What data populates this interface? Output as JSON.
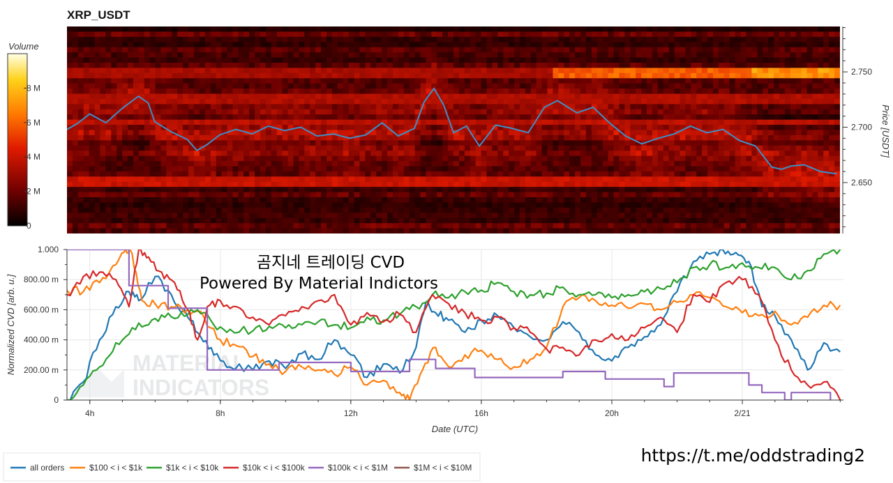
{
  "title": "XRP_USDT",
  "overlay_lines": [
    "곰지네 트레이딩 CVD",
    "Powered By Material Indictors"
  ],
  "watermark_lines": [
    "MATERIAL",
    "INDICATORS"
  ],
  "url_text": "https://t.me/oddstrading2",
  "colors": {
    "all_orders": "#1f77b4",
    "s100_1k": "#ff7f0e",
    "s1k_10k": "#2ca02c",
    "s10k_100k": "#d62728",
    "s100k_1m": "#9467bd",
    "s1m_10m": "#8c564b",
    "price_line": "#3d8fc9"
  },
  "chart_data": [
    {
      "type": "heatmap",
      "title": "XRP_USDT",
      "colorbar": {
        "label": "Volume",
        "ticks": [
          "0",
          "2 M",
          "4 M",
          "6 M",
          "8 M"
        ],
        "range": [
          0,
          10000000
        ]
      },
      "y_axis": {
        "label": "Price [USDT]",
        "ticks": [
          "2.650",
          "2.700",
          "2.750"
        ],
        "range": [
          2.604,
          2.791
        ]
      },
      "bright_levels": [
        {
          "price": 2.75,
          "level": 0.62
        },
        {
          "price": 2.705,
          "level": 0.38
        },
        {
          "price": 2.725,
          "level": 0.36
        },
        {
          "price": 2.65,
          "level": 0.42
        }
      ],
      "price_series": {
        "x": [
          3.3,
          3.6,
          4.0,
          4.5,
          5.0,
          5.5,
          5.8,
          6.0,
          6.5,
          7.0,
          7.3,
          7.6,
          8.0,
          8.5,
          9.0,
          9.5,
          10.0,
          10.5,
          11.0,
          11.5,
          12.0,
          12.5,
          13.0,
          13.5,
          14.0,
          14.3,
          14.6,
          14.9,
          15.2,
          15.6,
          16.0,
          16.5,
          17.0,
          17.5,
          18.0,
          18.4,
          19.0,
          19.5,
          20.0,
          20.5,
          21.0,
          21.5,
          22.0,
          22.5,
          23.0,
          23.5,
          24.0,
          24.5,
          25.0,
          25.3,
          25.6,
          26.0,
          26.5,
          27.0
        ],
        "y": [
          2.698,
          2.703,
          2.712,
          2.704,
          2.717,
          2.728,
          2.722,
          2.705,
          2.696,
          2.689,
          2.679,
          2.684,
          2.693,
          2.698,
          2.694,
          2.701,
          2.697,
          2.7,
          2.692,
          2.694,
          2.69,
          2.693,
          2.704,
          2.692,
          2.699,
          2.723,
          2.735,
          2.72,
          2.695,
          2.701,
          2.683,
          2.702,
          2.699,
          2.695,
          2.718,
          2.724,
          2.713,
          2.718,
          2.704,
          2.692,
          2.685,
          2.69,
          2.694,
          2.701,
          2.695,
          2.698,
          2.688,
          2.683,
          2.664,
          2.662,
          2.665,
          2.666,
          2.66,
          2.658
        ]
      }
    },
    {
      "type": "line",
      "xlabel": "Date (UTC)",
      "ylabel": "Normalized CVD [arb. u.]",
      "x_ticks": [
        "4h",
        "8h",
        "12h",
        "16h",
        "20h",
        "2/21"
      ],
      "x_tick_hours": [
        4,
        8,
        12,
        16,
        20,
        24
      ],
      "xlim": [
        3.3,
        27.1
      ],
      "y_ticks": [
        "0",
        "200.00 m",
        "400.00 m",
        "600.00 m",
        "800.00 m",
        "1.000"
      ],
      "ylim": [
        0,
        1
      ],
      "grid": true,
      "legend_position": "bottom",
      "series": [
        {
          "name": "all orders",
          "color_key": "all_orders",
          "x": [
            3.3,
            3.8,
            4.3,
            4.8,
            5.2,
            5.5,
            6.0,
            6.5,
            7.0,
            7.4,
            7.8,
            8.3,
            9.0,
            9.5,
            10.0,
            10.5,
            11.0,
            11.5,
            12.0,
            12.5,
            13.0,
            13.5,
            14.0,
            14.3,
            14.6,
            15.0,
            15.5,
            16.0,
            16.5,
            17.0,
            17.5,
            18.0,
            18.5,
            19.0,
            19.5,
            20.0,
            20.5,
            21.0,
            21.5,
            22.0,
            22.5,
            23.0,
            23.4,
            23.8,
            24.2,
            24.6,
            25.0,
            25.5,
            26.0,
            26.5,
            27.0
          ],
          "y": [
            0.0,
            0.12,
            0.4,
            0.62,
            0.72,
            0.66,
            0.82,
            0.7,
            0.55,
            0.42,
            0.3,
            0.22,
            0.2,
            0.26,
            0.21,
            0.31,
            0.27,
            0.4,
            0.3,
            0.15,
            0.24,
            0.18,
            0.35,
            0.65,
            0.58,
            0.53,
            0.45,
            0.53,
            0.56,
            0.48,
            0.42,
            0.4,
            0.52,
            0.45,
            0.3,
            0.26,
            0.35,
            0.42,
            0.5,
            0.72,
            0.92,
            0.97,
            1.0,
            0.98,
            0.92,
            0.62,
            0.56,
            0.4,
            0.2,
            0.38,
            0.32
          ]
        },
        {
          "name": "$100 < i < $1k",
          "color_key": "s100_1k",
          "x": [
            3.3,
            3.8,
            4.3,
            4.8,
            5.1,
            5.3,
            5.6,
            6.0,
            6.5,
            7.0,
            7.5,
            8.0,
            8.5,
            9.0,
            9.5,
            10.0,
            10.5,
            11.0,
            11.5,
            12.0,
            12.5,
            13.0,
            13.5,
            13.8,
            14.2,
            14.6,
            15.0,
            15.5,
            16.0,
            16.5,
            17.0,
            17.5,
            18.0,
            18.5,
            19.0,
            19.5,
            20.0,
            20.5,
            21.0,
            21.5,
            22.0,
            22.5,
            23.0,
            23.5,
            24.0,
            24.5,
            25.0,
            25.5,
            26.0,
            26.5,
            27.0
          ],
          "y": [
            0.73,
            0.72,
            0.78,
            0.9,
            1.0,
            0.97,
            0.66,
            0.64,
            0.62,
            0.6,
            0.55,
            0.4,
            0.36,
            0.29,
            0.24,
            0.19,
            0.22,
            0.2,
            0.17,
            0.22,
            0.1,
            0.13,
            0.05,
            0.0,
            0.2,
            0.35,
            0.22,
            0.3,
            0.33,
            0.27,
            0.22,
            0.27,
            0.35,
            0.62,
            0.68,
            0.66,
            0.63,
            0.61,
            0.64,
            0.6,
            0.65,
            0.7,
            0.68,
            0.62,
            0.58,
            0.56,
            0.59,
            0.5,
            0.55,
            0.63,
            0.63
          ]
        },
        {
          "name": "$1k < i < $10k",
          "color_key": "s1k_10k",
          "x": [
            3.3,
            3.8,
            4.3,
            4.8,
            5.3,
            5.8,
            6.3,
            6.8,
            7.3,
            7.8,
            8.3,
            9.0,
            9.5,
            10.0,
            10.5,
            11.0,
            11.5,
            12.0,
            12.5,
            13.0,
            13.5,
            14.0,
            14.5,
            15.0,
            15.5,
            16.0,
            16.5,
            17.0,
            17.5,
            18.0,
            18.5,
            19.0,
            19.5,
            20.0,
            20.5,
            21.0,
            21.5,
            22.0,
            22.5,
            23.0,
            23.5,
            24.0,
            24.5,
            25.0,
            25.5,
            26.0,
            26.5,
            27.0
          ],
          "y": [
            0.0,
            0.1,
            0.22,
            0.38,
            0.48,
            0.5,
            0.55,
            0.58,
            0.6,
            0.5,
            0.47,
            0.46,
            0.49,
            0.48,
            0.5,
            0.52,
            0.5,
            0.48,
            0.55,
            0.53,
            0.57,
            0.62,
            0.7,
            0.68,
            0.72,
            0.73,
            0.78,
            0.72,
            0.7,
            0.71,
            0.75,
            0.7,
            0.7,
            0.68,
            0.7,
            0.72,
            0.74,
            0.78,
            0.88,
            0.9,
            0.88,
            0.91,
            0.88,
            0.88,
            0.8,
            0.86,
            0.97,
            1.0
          ]
        },
        {
          "name": "$10k < i < $100k",
          "color_key": "s10k_100k",
          "x": [
            3.3,
            3.8,
            4.3,
            4.8,
            5.2,
            5.5,
            5.8,
            6.2,
            6.6,
            7.0,
            7.3,
            7.6,
            8.0,
            8.5,
            9.0,
            9.5,
            10.0,
            10.5,
            11.0,
            11.5,
            12.0,
            12.5,
            13.0,
            13.5,
            14.0,
            14.5,
            15.0,
            15.5,
            16.0,
            16.5,
            17.0,
            17.5,
            18.0,
            18.5,
            19.0,
            19.5,
            20.0,
            20.5,
            21.0,
            21.5,
            22.0,
            22.5,
            23.0,
            23.5,
            24.0,
            24.5,
            25.0,
            25.5,
            26.0,
            26.5,
            27.0
          ],
          "y": [
            0.7,
            0.82,
            0.85,
            0.8,
            0.62,
            1.0,
            0.95,
            0.85,
            0.78,
            0.6,
            0.4,
            0.62,
            0.66,
            0.62,
            0.55,
            0.5,
            0.56,
            0.62,
            0.66,
            0.7,
            0.5,
            0.58,
            0.52,
            0.57,
            0.45,
            0.7,
            0.64,
            0.58,
            0.53,
            0.55,
            0.48,
            0.45,
            0.34,
            0.35,
            0.3,
            0.4,
            0.44,
            0.4,
            0.48,
            0.55,
            0.45,
            0.7,
            0.65,
            0.78,
            0.8,
            0.7,
            0.4,
            0.2,
            0.1,
            0.12,
            0.0
          ]
        },
        {
          "name": "$100k < i < $1M",
          "color_key": "s100k_1m",
          "x": [
            3.3,
            5.2,
            5.2,
            6.4,
            6.4,
            7.6,
            7.6,
            9.8,
            9.8,
            12.0,
            12.0,
            13.8,
            13.8,
            14.6,
            14.6,
            15.8,
            15.8,
            18.5,
            18.5,
            19.8,
            19.8,
            21.6,
            21.6,
            21.9,
            21.9,
            24.2,
            24.2,
            24.6,
            24.6,
            25.3,
            25.3,
            25.5,
            25.5,
            26.7,
            26.7
          ],
          "y": [
            1.0,
            1.0,
            0.76,
            0.76,
            0.61,
            0.61,
            0.2,
            0.2,
            0.25,
            0.25,
            0.19,
            0.19,
            0.27,
            0.27,
            0.21,
            0.21,
            0.15,
            0.15,
            0.19,
            0.19,
            0.14,
            0.14,
            0.09,
            0.09,
            0.18,
            0.18,
            0.1,
            0.1,
            0.05,
            0.05,
            0.0,
            0.0,
            0.05,
            0.05,
            0.0
          ]
        },
        {
          "name": "$1M < i < $10M",
          "color_key": "s1m_10m",
          "x": [],
          "y": []
        }
      ]
    }
  ]
}
